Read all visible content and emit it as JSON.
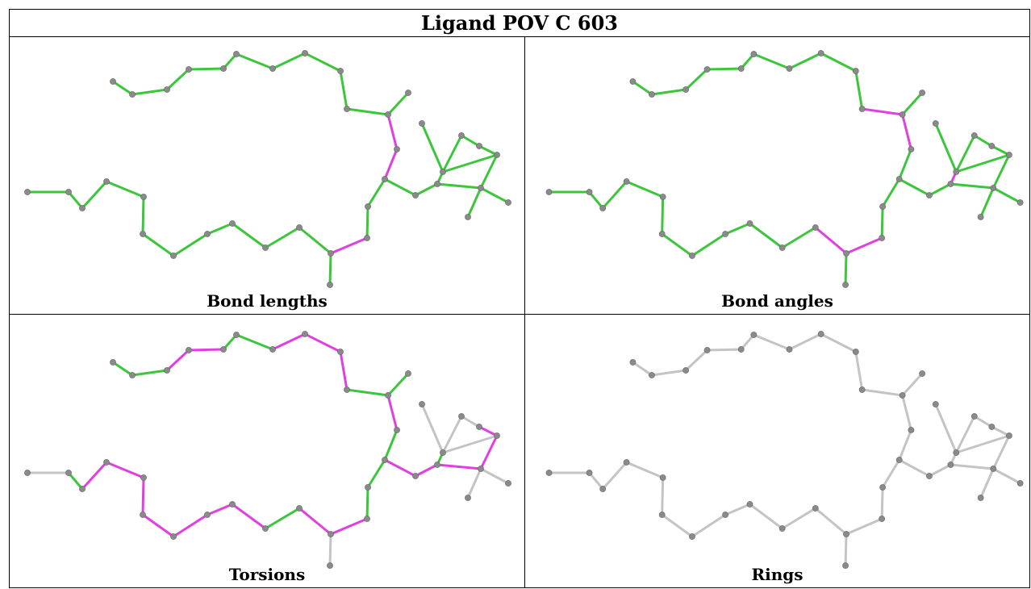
{
  "title": "Ligand POV C 603",
  "colors": {
    "good": "#3cc63c",
    "outlier": "#e040e0",
    "neutral": "#c4c4c4",
    "atom": "#8a8a8a"
  },
  "panels": [
    {
      "caption": "Bond lengths",
      "style": "lengths"
    },
    {
      "caption": "Bond angles",
      "style": "angles"
    },
    {
      "caption": "Torsions",
      "style": "torsions"
    },
    {
      "caption": "Rings",
      "style": "rings"
    }
  ]
}
